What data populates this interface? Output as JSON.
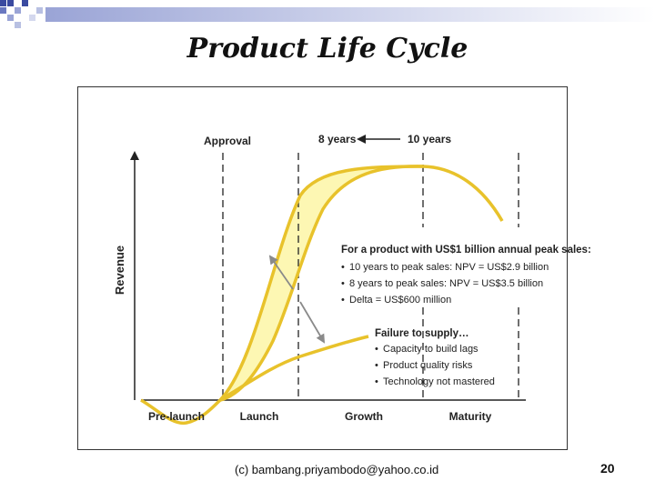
{
  "slide": {
    "title": "Product Life Cycle",
    "footer": "(c) bambang.priyambodo@yahoo.co.id",
    "page_number": "20"
  },
  "diagram": {
    "y_axis_label": "Revenue",
    "top_labels": {
      "approval": "Approval",
      "years_8": "8 years",
      "years_10": "10 years"
    },
    "stages": [
      "Pre-launch",
      "Launch",
      "Growth",
      "Maturity"
    ],
    "peak_box": {
      "heading": "For a product with US$1 billion annual peak sales:",
      "items": [
        "10 years to peak sales: NPV = US$2.9 billion",
        "8 years to peak sales: NPV = US$3.5 billion",
        "Delta = US$600 million"
      ]
    },
    "supply_box": {
      "heading": "Failure to supply…",
      "items": [
        "Capacity to build lags",
        "Product quality risks",
        "Technology not mastered"
      ]
    },
    "colors": {
      "curve": "#e8c22b",
      "fill": "#fdf7b3",
      "axis": "#222222",
      "arrow": "#8a8a8a"
    }
  }
}
